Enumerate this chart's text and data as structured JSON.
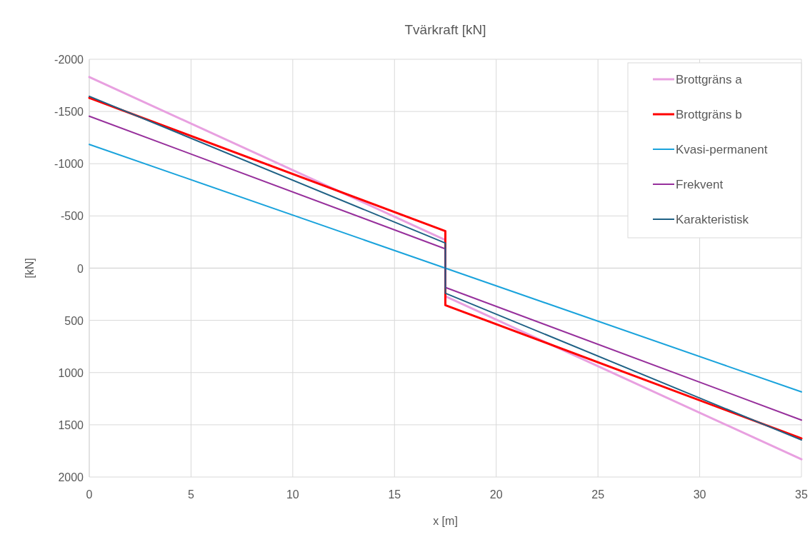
{
  "chart_data": {
    "type": "line",
    "title": "Tvärkraft [kN]",
    "xlabel": "x [m]",
    "ylabel": "[kN]",
    "xlim": [
      0,
      35
    ],
    "xticks": [
      0,
      5,
      10,
      15,
      20,
      25,
      30,
      35
    ],
    "ylim": [
      2000,
      -2000
    ],
    "yticks": [
      2000,
      1500,
      1000,
      500,
      0,
      -500,
      -1000,
      -1500,
      -2000
    ],
    "grid": true,
    "legend": "top right",
    "marker": "none",
    "line_style": "solid",
    "series": [
      {
        "name": "Brottgräns a",
        "color": "#e8a0e0",
        "x": [
          0,
          17.5,
          17.5,
          35
        ],
        "values": [
          -1830,
          -270,
          270,
          1830
        ]
      },
      {
        "name": "Brottgräns b",
        "color": "#ff0000",
        "x": [
          0,
          17.5,
          17.5,
          35
        ],
        "values": [
          -1630,
          -355,
          355,
          1630
        ]
      },
      {
        "name": "Kvasi-permanent",
        "color": "#1aa3dc",
        "x": [
          0,
          17.5,
          35
        ],
        "values": [
          -1185,
          0,
          1185
        ]
      },
      {
        "name": "Frekvent",
        "color": "#97309c",
        "x": [
          0,
          17.5,
          17.5,
          35
        ],
        "values": [
          -1455,
          -185,
          185,
          1455
        ]
      },
      {
        "name": "Karakteristisk",
        "color": "#1f6185",
        "x": [
          0,
          17.5,
          17.5,
          35
        ],
        "values": [
          -1645,
          -240,
          240,
          1645
        ]
      }
    ]
  }
}
